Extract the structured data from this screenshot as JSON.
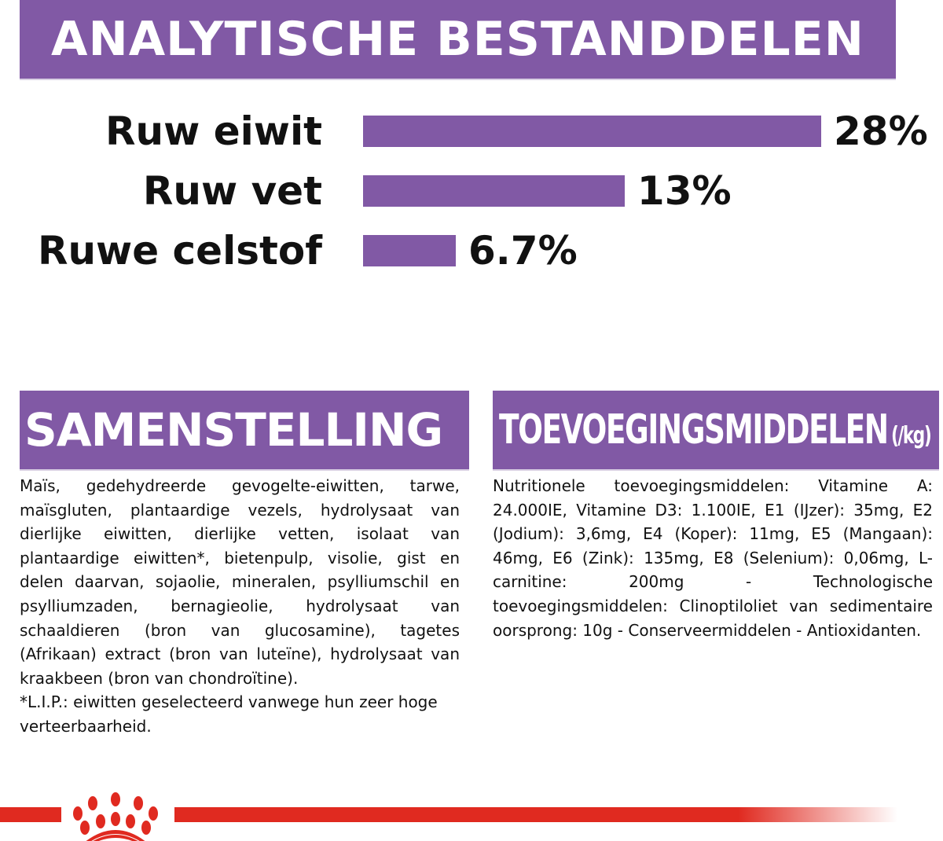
{
  "header": {
    "title": "ANALYTISCHE BESTANDDELEN"
  },
  "chart_data": {
    "type": "bar",
    "orientation": "horizontal",
    "categories": [
      "Ruw eiwit",
      "Ruw vet",
      "Ruwe celstof"
    ],
    "values": [
      28,
      13,
      6.7
    ],
    "value_labels": [
      "28%",
      "13%",
      "6.7%"
    ],
    "unit": "%",
    "grid": false,
    "bar_color": "#8159a5"
  },
  "samenstelling": {
    "title": "SAMENSTELLING",
    "text": "Maïs, gedehydreerde gevogelte-eiwitten, tarwe, maïsgluten, plantaardige vezels, hydrolysaat van dierlijke eiwitten, dierlijke vetten, isolaat van plantaardige eiwitten*, bietenpulp, visolie, gist en delen daarvan, sojaolie, mineralen, psylliumschil en psylliumzaden, bernagieolie, hydrolysaat van schaaldieren (bron van glucosamine), tagetes (Afrikaan) extract (bron van luteïne), hydrolysaat van kraakbeen (bron van chondroïtine).",
    "footnote": "*L.I.P.: eiwitten geselecteerd vanwege hun zeer hoge verteerbaarheid."
  },
  "toevoegingsmiddelen": {
    "title": "TOEVOEGINGSMIDDELEN",
    "unit": "(/kg)",
    "text": "Nutritionele toevoegingsmiddelen: Vitamine A: 24.000IE, Vitamine D3: 1.100IE, E1 (IJzer): 35mg, E2 (Jodium): 3,6mg, E4 (Koper): 11mg, E5 (Mangaan): 46mg, E6 (Zink): 135mg, E8 (Selenium): 0,06mg, L-carnitine: 200mg - Technologische toevoegingsmiddelen: Clinoptiloliet van sedimentaire oorsprong: 10g - Conserveermiddelen - Antioxidanten."
  },
  "footer": {
    "logo": "royal-canin-crown",
    "brand_color": "#e02a20"
  }
}
